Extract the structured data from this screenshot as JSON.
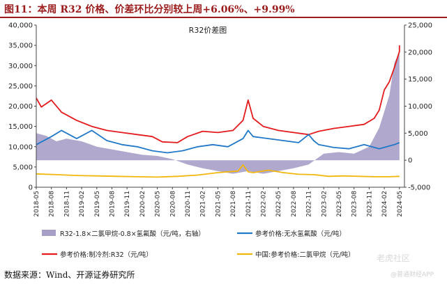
{
  "figure_title": "图11：本周 R32 价格、价差环比分别较上周+6.06%、+9.99%",
  "source_note": "数据来源：Wind、开源证券研究所",
  "watermark": "老虎社区",
  "watermark_sub": "@普通财经APP",
  "colors": {
    "spread": "#a79ec8",
    "hf": "#1f78c8",
    "r32": "#e41a1c",
    "ch2cl2": "#f2b70c",
    "title": "#9b1c1c"
  },
  "chart_data": {
    "type": "line",
    "title": "R32价差图",
    "left_axis": {
      "ylim": [
        0,
        40000
      ],
      "ticks": [
        "0",
        "5,000",
        "10,000",
        "15,000",
        "20,000",
        "25,000",
        "30,000",
        "35,000",
        "40,000"
      ]
    },
    "right_axis": {
      "ylim": [
        -5000,
        25000
      ],
      "ticks": [
        "-5,000",
        "0",
        "5,000",
        "10,000",
        "15,000",
        "20,000",
        "25,000"
      ]
    },
    "x_axis": {
      "range": [
        "2018-05",
        "2024-06"
      ],
      "ticks": [
        "2018-05",
        "2018-08",
        "2018-11",
        "2019-02",
        "2019-05",
        "2019-08",
        "2019-11",
        "2020-02",
        "2020-05",
        "2020-08",
        "2020-11",
        "2021-02",
        "2021-05",
        "2021-08",
        "2021-11",
        "2022-02",
        "2022-05",
        "2022-08",
        "2022-11",
        "2023-02",
        "2023-05",
        "2023-08",
        "2023-11",
        "2024-02",
        "2024-05"
      ]
    },
    "legend": [
      "R32-1.8×二氯甲烷-0.8×氢氟酸（元/吨，右轴）",
      "参考价格:无水氢氟酸（元/吨）",
      "参考价格:制冷剂:R32（元/吨）",
      "中国:参考价格:二氯甲烷（元/吨）"
    ],
    "legend_position": "bottom",
    "grid": false,
    "series": [
      {
        "name": "参考价格:制冷剂:R32（元/吨）",
        "axis": "left",
        "x": [
          "2018-05",
          "2018-06",
          "2018-08",
          "2018-10",
          "2019-01",
          "2019-04",
          "2019-07",
          "2019-10",
          "2020-01",
          "2020-04",
          "2020-06",
          "2020-09",
          "2020-11",
          "2021-02",
          "2021-05",
          "2021-08",
          "2021-10",
          "2021-11",
          "2021-12",
          "2022-02",
          "2022-05",
          "2022-08",
          "2022-11",
          "2023-01",
          "2023-04",
          "2023-07",
          "2023-10",
          "2023-12",
          "2024-01",
          "2024-02",
          "2024-03",
          "2024-04",
          "2024-05",
          "2024-05"
        ],
        "values": [
          22000,
          19800,
          21500,
          18500,
          16500,
          15000,
          14000,
          13500,
          13000,
          12500,
          11200,
          11000,
          12500,
          13800,
          13500,
          14000,
          16500,
          21500,
          17000,
          15000,
          14000,
          13500,
          13000,
          13800,
          14500,
          15000,
          15500,
          17000,
          19000,
          24000,
          26000,
          29500,
          33500,
          35000
        ]
      },
      {
        "name": "参考价格:无水氢氟酸（元/吨）",
        "axis": "left",
        "x": [
          "2018-05",
          "2018-08",
          "2018-10",
          "2019-01",
          "2019-04",
          "2019-07",
          "2019-10",
          "2020-01",
          "2020-04",
          "2020-07",
          "2020-10",
          "2021-01",
          "2021-04",
          "2021-07",
          "2021-10",
          "2021-11",
          "2021-12",
          "2022-03",
          "2022-06",
          "2022-09",
          "2022-11",
          "2022-12",
          "2023-01",
          "2023-04",
          "2023-07",
          "2023-10",
          "2024-01",
          "2024-04",
          "2024-05"
        ],
        "values": [
          10500,
          12500,
          14000,
          12000,
          14000,
          11500,
          10500,
          10000,
          9000,
          8500,
          9000,
          10000,
          10500,
          10000,
          12000,
          14000,
          12500,
          12000,
          11500,
          11000,
          13000,
          11500,
          10500,
          9800,
          9500,
          10500,
          9500,
          10500,
          11000
        ]
      },
      {
        "name": "中国:参考价格:二氯甲烷（元/吨）",
        "axis": "left",
        "x": [
          "2018-05",
          "2018-09",
          "2019-01",
          "2019-05",
          "2019-09",
          "2020-01",
          "2020-05",
          "2020-09",
          "2021-01",
          "2021-05",
          "2021-09",
          "2021-10",
          "2021-11",
          "2021-12",
          "2022-03",
          "2022-06",
          "2022-09",
          "2022-12",
          "2023-03",
          "2023-06",
          "2023-09",
          "2023-12",
          "2024-03",
          "2024-05"
        ],
        "values": [
          3300,
          3100,
          2900,
          2800,
          2700,
          2600,
          2500,
          2700,
          3000,
          3600,
          4000,
          5500,
          3800,
          3600,
          4200,
          3600,
          3200,
          3100,
          2700,
          2800,
          2700,
          2600,
          2600,
          2700
        ]
      },
      {
        "name": "R32-1.8×二氯甲烷-0.8×氢氟酸（元/吨，右轴）",
        "axis": "right",
        "type": "area",
        "x": [
          "2018-05",
          "2018-07",
          "2018-09",
          "2018-11",
          "2019-02",
          "2019-05",
          "2019-08",
          "2019-11",
          "2020-02",
          "2020-05",
          "2020-08",
          "2020-11",
          "2021-02",
          "2021-05",
          "2021-08",
          "2021-11",
          "2022-02",
          "2022-05",
          "2022-08",
          "2022-11",
          "2023-02",
          "2023-05",
          "2023-08",
          "2023-11",
          "2024-01",
          "2024-03",
          "2024-04",
          "2024-05"
        ],
        "values": [
          5000,
          4500,
          3500,
          4000,
          3500,
          2500,
          2000,
          1500,
          1000,
          800,
          200,
          -800,
          -1500,
          -2000,
          -2500,
          -2000,
          -2500,
          -2000,
          -1500,
          -800,
          1200,
          1500,
          1200,
          2500,
          6000,
          12000,
          18000,
          20000
        ]
      }
    ]
  }
}
